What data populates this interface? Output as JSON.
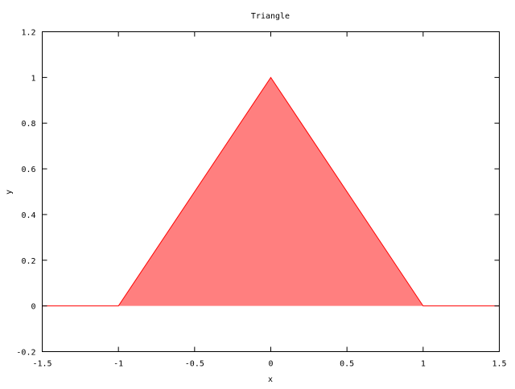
{
  "chart_data": {
    "type": "area",
    "title": "Triangle",
    "xlabel": "x",
    "ylabel": "y",
    "xlim": [
      -1.5,
      1.5
    ],
    "ylim": [
      -0.2,
      1.2
    ],
    "xticks": [
      -1.5,
      -1,
      -0.5,
      0,
      0.5,
      1,
      1.5
    ],
    "xtick_labels": [
      "-1.5",
      "-1",
      "-0.5",
      "0",
      "0.5",
      "1",
      "1.5"
    ],
    "yticks": [
      -0.2,
      0,
      0.2,
      0.4,
      0.6,
      0.8,
      1,
      1.2
    ],
    "ytick_labels": [
      "-0.2",
      "0",
      "0.2",
      "0.4",
      "0.6",
      "0.8",
      "1",
      "1.2"
    ],
    "grid": false,
    "legend": "none",
    "series": [
      {
        "x": [
          -1.5,
          -1,
          0,
          1,
          1.5
        ],
        "y": [
          0,
          0,
          1,
          0,
          0
        ],
        "line_color": "#ff0000",
        "fill_color": "#ff7f7f"
      }
    ]
  }
}
